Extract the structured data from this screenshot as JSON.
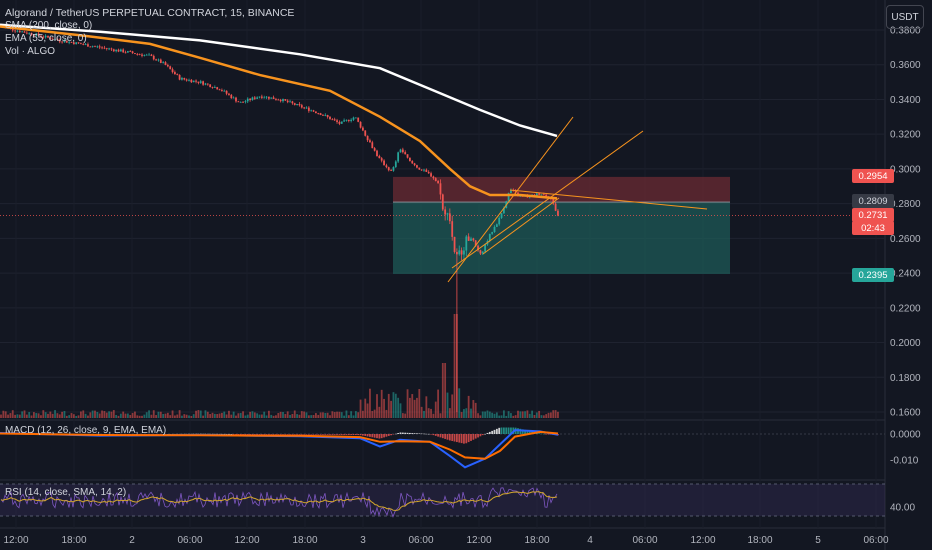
{
  "header": {
    "title": "Algorand / TetherUS PERPETUAL CONTRACT, 15, BINANCE",
    "indicator_sma": "SMA (200, close, 0)",
    "indicator_ema": "EMA (55, close, 0)",
    "indicator_vol": "Vol · ALGO",
    "currency_button": "USDT"
  },
  "panes": {
    "macd_label": "MACD (12, 26, close, 9, EMA, EMA)",
    "rsi_label": "RSI (14, close, SMA, 14, 2)"
  },
  "price_tags": {
    "target": "0.2954",
    "entry": "0.2809",
    "last": "0.2731",
    "countdown": "02:43",
    "stop": "0.2395"
  },
  "colors": {
    "background": "#131722",
    "up": "#26a69a",
    "down": "#ef5350",
    "sma": "#ffffff",
    "ema": "#f7931e",
    "trendline": "#f7931e",
    "profit_zone": "#1e5e5a",
    "loss_zone": "#6b2b33",
    "macd_line": "#2962ff",
    "signal_line": "#ff6d00",
    "rsi_line": "#d4a72c",
    "rsi_band": "#3a2f5e"
  },
  "chart_data": [
    {
      "type": "candlestick",
      "title": "Algorand / TetherUS PERPETUAL CONTRACT, 15, BINANCE",
      "x_ticks": [
        "12:00",
        "18:00",
        "2",
        "06:00",
        "12:00",
        "18:00",
        "3",
        "06:00",
        "12:00",
        "18:00",
        "4",
        "06:00",
        "12:00",
        "18:00",
        "5",
        "06:00"
      ],
      "y_ticks": [
        0.38,
        0.36,
        0.34,
        0.32,
        0.3,
        0.28,
        0.26,
        0.24,
        0.22,
        0.2,
        0.18,
        0.16
      ],
      "ylim": [
        0.158,
        0.384
      ],
      "price_path": [
        [
          0,
          0.382
        ],
        [
          30,
          0.378
        ],
        [
          60,
          0.374
        ],
        [
          90,
          0.371
        ],
        [
          120,
          0.368
        ],
        [
          150,
          0.365
        ],
        [
          165,
          0.36
        ],
        [
          180,
          0.352
        ],
        [
          200,
          0.35
        ],
        [
          220,
          0.346
        ],
        [
          240,
          0.338
        ],
        [
          260,
          0.342
        ],
        [
          280,
          0.34
        ],
        [
          300,
          0.336
        ],
        [
          320,
          0.332
        ],
        [
          340,
          0.326
        ],
        [
          355,
          0.33
        ],
        [
          365,
          0.32
        ],
        [
          380,
          0.305
        ],
        [
          392,
          0.298
        ],
        [
          400,
          0.312
        ],
        [
          410,
          0.304
        ],
        [
          420,
          0.3
        ],
        [
          432,
          0.296
        ],
        [
          440,
          0.29
        ],
        [
          444,
          0.27
        ],
        [
          448,
          0.278
        ],
        [
          452,
          0.262
        ],
        [
          456,
          0.248
        ],
        [
          462,
          0.254
        ],
        [
          470,
          0.262
        ],
        [
          480,
          0.25
        ],
        [
          490,
          0.262
        ],
        [
          500,
          0.272
        ],
        [
          510,
          0.288
        ],
        [
          520,
          0.284
        ],
        [
          530,
          0.284
        ],
        [
          540,
          0.286
        ],
        [
          550,
          0.284
        ],
        [
          558,
          0.2731
        ]
      ],
      "spike_low": 0.16,
      "spike_x": 456,
      "sma_200": [
        [
          0,
          0.383
        ],
        [
          100,
          0.379
        ],
        [
          200,
          0.374
        ],
        [
          300,
          0.366
        ],
        [
          380,
          0.358
        ],
        [
          430,
          0.346
        ],
        [
          480,
          0.334
        ],
        [
          520,
          0.325
        ],
        [
          557,
          0.319
        ]
      ],
      "ema_55": [
        [
          0,
          0.382
        ],
        [
          80,
          0.377
        ],
        [
          150,
          0.372
        ],
        [
          200,
          0.364
        ],
        [
          260,
          0.354
        ],
        [
          330,
          0.345
        ],
        [
          380,
          0.33
        ],
        [
          420,
          0.316
        ],
        [
          450,
          0.3
        ],
        [
          470,
          0.29
        ],
        [
          490,
          0.285
        ],
        [
          520,
          0.285
        ],
        [
          557,
          0.283
        ]
      ],
      "last_price": 0.2731,
      "position": {
        "entry": 0.2809,
        "target": 0.2954,
        "stop": 0.2395
      }
    },
    {
      "type": "macd",
      "title": "MACD (12, 26, close, 9, EMA, EMA)",
      "y_ticks": [
        0.0,
        -0.01
      ],
      "ylim": [
        -0.016,
        0.004
      ],
      "macd": [
        [
          0,
          0.0004
        ],
        [
          100,
          -0.0006
        ],
        [
          200,
          -0.0004
        ],
        [
          300,
          -0.0009
        ],
        [
          360,
          -0.0016
        ],
        [
          380,
          -0.0048
        ],
        [
          400,
          -0.0022
        ],
        [
          430,
          -0.003
        ],
        [
          450,
          -0.0085
        ],
        [
          465,
          -0.0128
        ],
        [
          485,
          -0.0095
        ],
        [
          500,
          -0.004
        ],
        [
          515,
          0.0015
        ],
        [
          540,
          0.001
        ],
        [
          558,
          -0.0003
        ]
      ],
      "signal": [
        [
          0,
          0.0002
        ],
        [
          100,
          -0.0004
        ],
        [
          200,
          -0.0005
        ],
        [
          300,
          -0.0007
        ],
        [
          360,
          -0.0012
        ],
        [
          380,
          -0.003
        ],
        [
          400,
          -0.0028
        ],
        [
          430,
          -0.003
        ],
        [
          450,
          -0.006
        ],
        [
          465,
          -0.009
        ],
        [
          485,
          -0.0095
        ],
        [
          500,
          -0.0065
        ],
        [
          515,
          -0.001
        ],
        [
          540,
          0.0008
        ],
        [
          558,
          0.0002
        ]
      ]
    },
    {
      "type": "line",
      "title": "RSI (14, close, SMA, 14, 2)",
      "y_ticks": [
        40.0
      ],
      "ylim": [
        15,
        90
      ]
    }
  ]
}
